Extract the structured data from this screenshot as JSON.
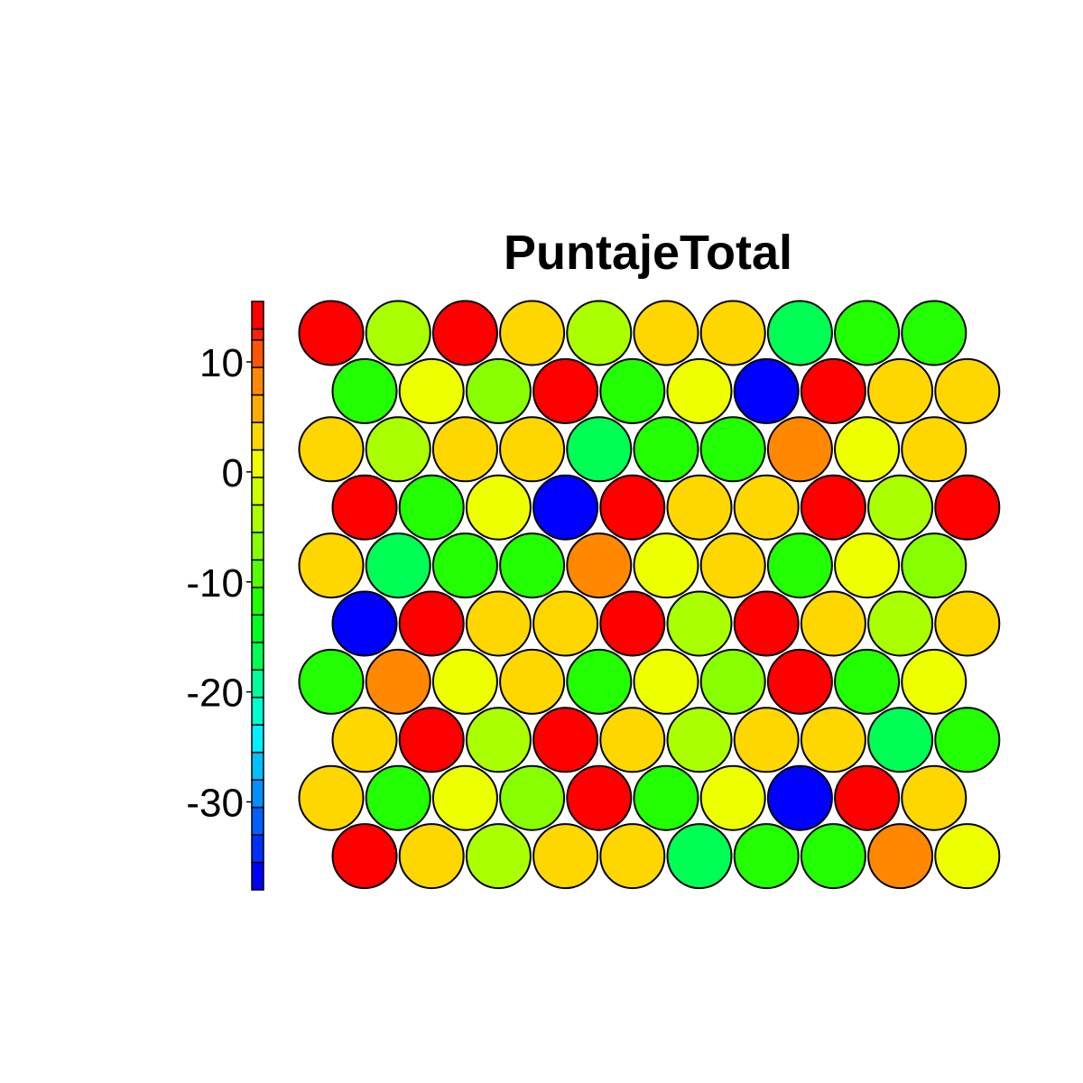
{
  "chart_data": {
    "type": "heatmap",
    "subtype": "som-hexagonal-grid",
    "title": "PuntajeTotal",
    "grid": {
      "rows": 10,
      "cols": 10,
      "topology": "hexagonal"
    },
    "legend": {
      "placement": "left",
      "type": "color-scale",
      "range": [
        -38,
        15.5
      ],
      "ticks": [
        10,
        0,
        -10,
        -20,
        -30
      ],
      "tick_labels": [
        "10",
        "0",
        "-10",
        "-20",
        "-30"
      ],
      "bins": [
        {
          "from": -38.0,
          "to": -35.5,
          "color": "#0000ff"
        },
        {
          "from": -35.5,
          "to": -33.0,
          "color": "#0030ff"
        },
        {
          "from": -33.0,
          "to": -30.5,
          "color": "#0060ff"
        },
        {
          "from": -30.5,
          "to": -28.0,
          "color": "#0090ff"
        },
        {
          "from": -28.0,
          "to": -25.5,
          "color": "#00c0ff"
        },
        {
          "from": -25.5,
          "to": -23.0,
          "color": "#00f0ff"
        },
        {
          "from": -23.0,
          "to": -20.5,
          "color": "#00ffcc"
        },
        {
          "from": -20.5,
          "to": -18.0,
          "color": "#00ff99"
        },
        {
          "from": -18.0,
          "to": -15.5,
          "color": "#00ff55"
        },
        {
          "from": -15.5,
          "to": -13.0,
          "color": "#00ff22"
        },
        {
          "from": -13.0,
          "to": -10.5,
          "color": "#22ff00"
        },
        {
          "from": -10.5,
          "to": -8.0,
          "color": "#55ff00"
        },
        {
          "from": -8.0,
          "to": -5.5,
          "color": "#88ff00"
        },
        {
          "from": -5.5,
          "to": -3.0,
          "color": "#aaff00"
        },
        {
          "from": -3.0,
          "to": -0.5,
          "color": "#ccff00"
        },
        {
          "from": -0.5,
          "to": 2.0,
          "color": "#eeff00"
        },
        {
          "from": 2.0,
          "to": 4.5,
          "color": "#ffd700"
        },
        {
          "from": 4.5,
          "to": 7.0,
          "color": "#ffaa00"
        },
        {
          "from": 7.0,
          "to": 9.5,
          "color": "#ff8800"
        },
        {
          "from": 9.5,
          "to": 12.0,
          "color": "#ff5500"
        },
        {
          "from": 12.0,
          "to": 13.0,
          "color": "#ff2200"
        },
        {
          "from": 13.0,
          "to": 15.5,
          "color": "#ff0000"
        }
      ]
    },
    "cells": [
      [
        14,
        -4,
        14,
        4,
        -4,
        4,
        4,
        -16,
        -13,
        -11
      ],
      [
        -11,
        0,
        -7,
        14,
        -13,
        0,
        -37,
        14,
        4,
        4
      ],
      [
        4,
        -4,
        4,
        4,
        -16,
        -13,
        -11,
        7,
        0,
        4
      ],
      [
        14,
        -13,
        0,
        -37,
        14,
        4,
        4,
        14,
        -4,
        14
      ],
      [
        4,
        -16,
        -13,
        -11,
        7,
        0,
        4,
        -11,
        0,
        -7
      ],
      [
        -37,
        14,
        4,
        4,
        14,
        -4,
        14,
        4,
        -4,
        4
      ],
      [
        -11,
        7,
        0,
        4,
        -11,
        0,
        -7,
        14,
        -13,
        0
      ],
      [
        4,
        14,
        -4,
        14,
        4,
        -4,
        4,
        4,
        -16,
        -13
      ],
      [
        4,
        -11,
        0,
        -7,
        14,
        -13,
        0,
        -37,
        14,
        4
      ],
      [
        14,
        4,
        -4,
        4,
        4,
        -16,
        -13,
        -11,
        7,
        0
      ]
    ]
  }
}
